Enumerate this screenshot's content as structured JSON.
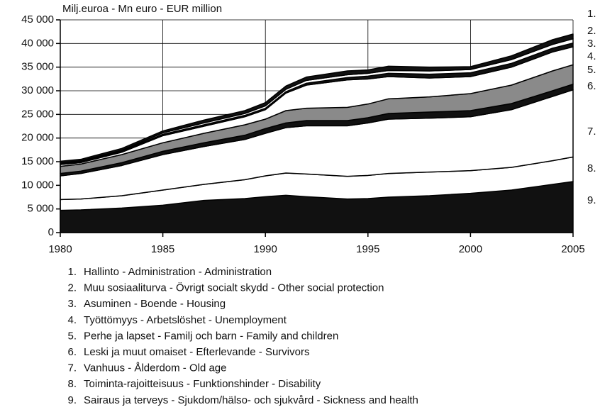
{
  "chart_data": {
    "type": "area",
    "stacked": true,
    "title": "Milj.euroa - Mn euro - EUR million",
    "x": [
      1980,
      1981,
      1983,
      1985,
      1987,
      1989,
      1990,
      1991,
      1992,
      1994,
      1995,
      1996,
      1998,
      2000,
      2002,
      2004,
      2005
    ],
    "xlim": [
      1980,
      2005
    ],
    "xticks": [
      1980,
      1985,
      1990,
      1995,
      2000,
      2005
    ],
    "ylim": [
      0,
      45000
    ],
    "yticks": [
      0,
      {
        "value": 5000,
        "label": "5 000"
      },
      {
        "value": 10000,
        "label": "10 000"
      },
      {
        "value": 15000,
        "label": "15 000"
      },
      {
        "value": 20000,
        "label": "20 000"
      },
      {
        "value": 25000,
        "label": "25 000"
      },
      {
        "value": 30000,
        "label": "30 000"
      },
      {
        "value": 35000,
        "label": "35 000"
      },
      {
        "value": 40000,
        "label": "40 000"
      },
      {
        "value": 45000,
        "label": "45 000"
      }
    ],
    "grid": true,
    "series": [
      {
        "label": "1.",
        "name": "Hallinto - Administration - Administration",
        "color": "#111111",
        "values": [
          300,
          300,
          400,
          400,
          600,
          600,
          700,
          700,
          700,
          800,
          700,
          900,
          800,
          600,
          800,
          1000,
          1000
        ]
      },
      {
        "label": "2.",
        "name": "Muu sosiaaliturva - Övrigt socialt skydd - Other social protection",
        "color": "#ffffff",
        "values": [
          200,
          200,
          200,
          300,
          400,
          400,
          500,
          500,
          600,
          600,
          600,
          600,
          700,
          700,
          800,
          800,
          900
        ]
      },
      {
        "label": "3.",
        "name": "Asuminen - Boende - Housing",
        "color": "#111111",
        "values": [
          200,
          200,
          200,
          300,
          300,
          300,
          300,
          300,
          400,
          500,
          600,
          700,
          800,
          800,
          800,
          800,
          800
        ]
      },
      {
        "label": "4.",
        "name": "Työttömyys - Arbetslöshet - Unemployment",
        "color": "#ffffff",
        "values": [
          400,
          300,
          500,
          1500,
          1500,
          1700,
          2000,
          3700,
          4900,
          5800,
          5300,
          4700,
          4000,
          3600,
          3800,
          4000,
          3800
        ]
      },
      {
        "label": "5.",
        "name": "Perhe ja lapset - Familj och barn - Family and children",
        "color": "#8a8a8a",
        "values": [
          1500,
          1500,
          1700,
          1800,
          2000,
          2200,
          2000,
          2600,
          2600,
          2800,
          2900,
          3100,
          3200,
          3600,
          3900,
          4200,
          4100
        ]
      },
      {
        "label": "6.",
        "name": "Leski ja muut omaiset - Efterlevande - Survivors",
        "color": "#111111",
        "values": [
          500,
          500,
          600,
          700,
          800,
          900,
          1000,
          1000,
          1100,
          1100,
          1100,
          1200,
          1300,
          1300,
          1300,
          1200,
          1200
        ]
      },
      {
        "label": "7.",
        "name": "Vanhuus - Ålderdom - Old age",
        "color": "#ffffff",
        "values": [
          5000,
          5400,
          6400,
          7500,
          8000,
          8500,
          9000,
          9600,
          10200,
          10700,
          11100,
          11500,
          11400,
          11400,
          12200,
          13600,
          14200
        ]
      },
      {
        "label": "8.",
        "name": "Toiminta-rajoitteisuus - Funktionshinder - Disability",
        "color": "#ffffff",
        "values": [
          2300,
          2300,
          2600,
          3200,
          3400,
          4000,
          4400,
          4700,
          4800,
          4800,
          4900,
          5000,
          5000,
          4800,
          4800,
          5000,
          5200
        ]
      },
      {
        "label": "9.",
        "name": "Sairaus ja terveys - Sjukdom/hälso- och sjukvård - Sickness and health",
        "color": "#111111",
        "values": [
          4700,
          4800,
          5200,
          5800,
          6800,
          7200,
          7600,
          7900,
          7600,
          7100,
          7200,
          7500,
          7800,
          8300,
          9000,
          10200,
          10800
        ]
      }
    ]
  }
}
